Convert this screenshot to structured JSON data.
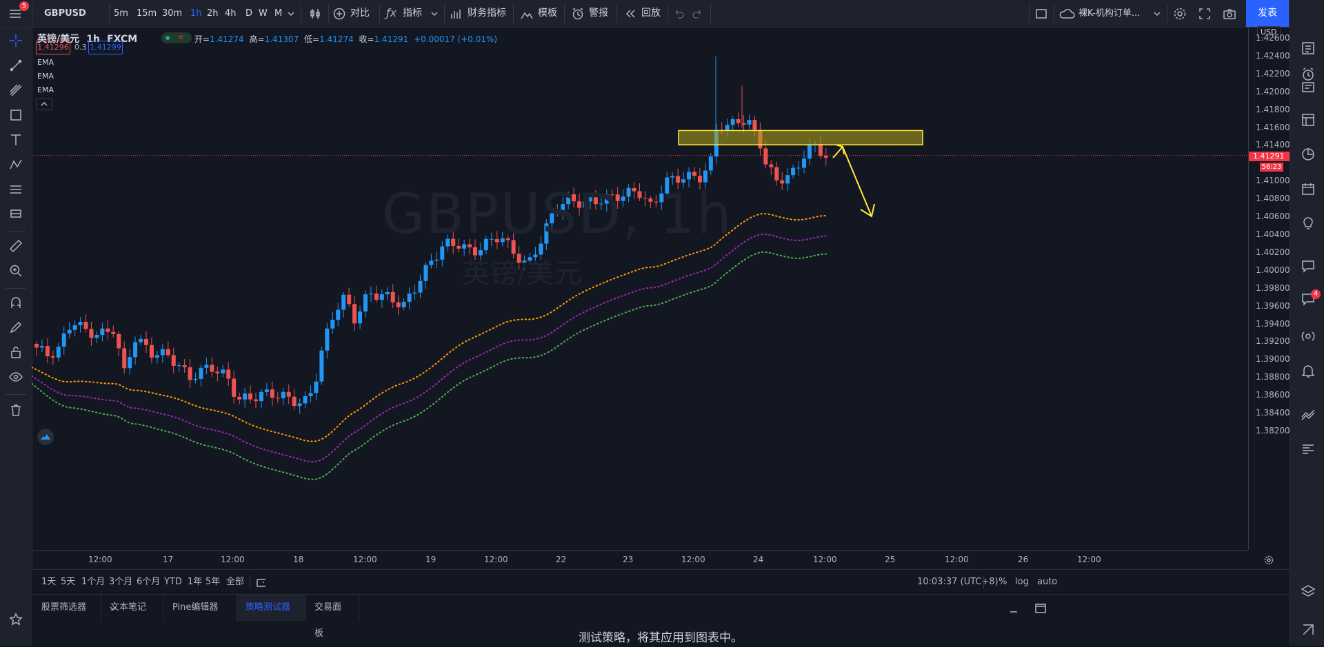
{
  "toolbar": {
    "menu_badge": "5",
    "symbol": "GBPUSD",
    "intervals": [
      "5m",
      "15m",
      "30m",
      "1h",
      "2h",
      "4h",
      "D",
      "W",
      "M"
    ],
    "active_interval": "1h",
    "compare": "对比",
    "indicators": "指标",
    "financials": "财务指标",
    "templates": "模板",
    "alerts": "警报",
    "replay": "回放",
    "layout_name": "裸K-机构订单...",
    "publish": "发表"
  },
  "legend": {
    "symbol_name": "英镑/美元",
    "interval": "1h",
    "exchange": "FXCM",
    "open_label": "开=",
    "open": "1.41274",
    "high_label": "高=",
    "high": "1.41307",
    "low_label": "低=",
    "low": "1.41274",
    "close_label": "收=",
    "close": "1.41291",
    "change": "+0.00017 (+0.01%)",
    "sell": "1.41296",
    "spread": "0.3",
    "buy": "1.41299",
    "indicators": [
      "EMA",
      "EMA",
      "EMA"
    ]
  },
  "watermark": {
    "main": "GBPUSD, 1h",
    "sub": "英镑/美元"
  },
  "price_axis": {
    "currency": "USD",
    "labels": [
      "1.42600",
      "1.42400",
      "1.42200",
      "1.42000",
      "1.41800",
      "1.41600",
      "1.41400",
      "1.41000",
      "1.40800",
      "1.40600",
      "1.40400",
      "1.40200",
      "1.40000",
      "1.39800",
      "1.39600",
      "1.39400",
      "1.39200",
      "1.39000",
      "1.38800",
      "1.38600",
      "1.38400",
      "1.38200"
    ],
    "current_price": "1.41291",
    "countdown": "56:23"
  },
  "time_axis": {
    "labels": [
      "12:00",
      "17",
      "12:00",
      "18",
      "12:00",
      "19",
      "12:00",
      "22",
      "23",
      "12:00",
      "24",
      "12:00",
      "25",
      "12:00",
      "26",
      "12:00"
    ]
  },
  "range_bar": {
    "ranges": [
      "1天",
      "5天",
      "1个月",
      "3个月",
      "6个月",
      "YTD",
      "1年",
      "5年",
      "全部"
    ],
    "clock": "10:03:37 (UTC+8)",
    "percent": "%",
    "log": "log",
    "auto": "auto"
  },
  "bottom_panel": {
    "tabs": [
      "股票筛选器",
      "文本笔记",
      "Pine编辑器",
      "策略测试器",
      "交易面板"
    ],
    "active_tab": "策略测试器",
    "message": "测试策略，将其应用到图表中。"
  },
  "right_sidebar": {
    "chat_badge": "4"
  },
  "colors": {
    "background": "#131722",
    "up": "#2196f3",
    "down": "#ef5350",
    "ema_fast": "#ff9800",
    "ema_mid": "#9c27b0",
    "ema_slow": "#4caf50",
    "zone": "#b5a51c",
    "arrow": "#ffeb3b",
    "accent": "#2962ff"
  }
}
